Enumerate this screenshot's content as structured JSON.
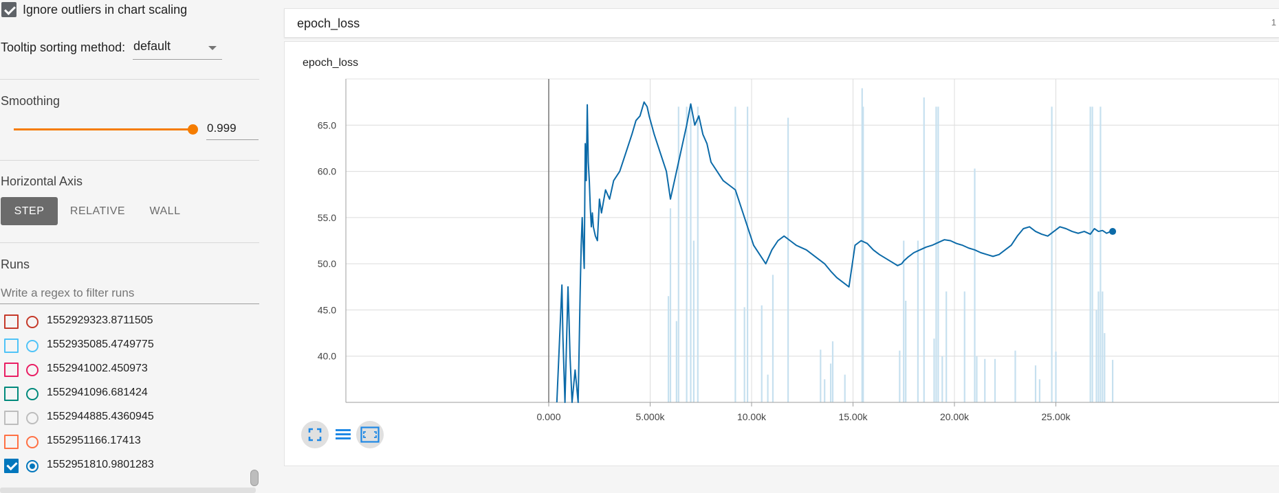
{
  "sidebar": {
    "ignore_outliers": {
      "label": "Ignore outliers in chart scaling",
      "checked": true
    },
    "tooltip": {
      "label": "Tooltip sorting method:",
      "value": "default"
    },
    "smoothing": {
      "title": "Smoothing",
      "value": "0.999",
      "fraction": 0.999
    },
    "horizontal_axis": {
      "title": "Horizontal Axis",
      "options": [
        "STEP",
        "RELATIVE",
        "WALL"
      ],
      "active": "STEP"
    },
    "runs": {
      "title": "Runs",
      "filter_placeholder": "Write a regex to filter runs",
      "items": [
        {
          "label": "1552929323.8711505",
          "color": "#c53929",
          "checked": false
        },
        {
          "label": "1552935085.4749775",
          "color": "#4fc3f7",
          "checked": false
        },
        {
          "label": "1552941002.450973",
          "color": "#e91e63",
          "checked": false
        },
        {
          "label": "1552941096.681424",
          "color": "#00897b",
          "checked": false
        },
        {
          "label": "1552944885.4360945",
          "color": "#bdbdbd",
          "checked": false
        },
        {
          "label": "1552951166.17413",
          "color": "#ff7043",
          "checked": false
        },
        {
          "label": "1552951810.9801283",
          "color": "#0277bd",
          "checked": true
        }
      ]
    }
  },
  "card": {
    "header_title": "epoch_loss",
    "header_count": "1",
    "chart_title": "epoch_loss"
  },
  "colors": {
    "accent_orange": "#f57c00",
    "series_dark": "#0b6aa8",
    "series_light": "#c6e0ef",
    "active_button": "#6b6b6b"
  },
  "toolbar": {
    "icons": [
      "fullscreen-icon",
      "list-icon",
      "fit-domain-icon"
    ]
  },
  "chart_data": {
    "type": "line",
    "title": "epoch_loss",
    "xlabel": "",
    "ylabel": "",
    "xlim": [
      -10000,
      36000
    ],
    "ylim": [
      35,
      70
    ],
    "x_ticks": [
      "0.000",
      "5.000k",
      "10.00k",
      "15.00k",
      "20.00k",
      "25.00k"
    ],
    "x_tick_values": [
      0,
      5000,
      10000,
      15000,
      20000,
      25000
    ],
    "y_ticks": [
      "40.0",
      "45.0",
      "50.0",
      "55.0",
      "60.0",
      "65.0"
    ],
    "y_tick_values": [
      40,
      45,
      50,
      55,
      60,
      65
    ],
    "grid": true,
    "series": [
      {
        "role": "smoothed",
        "x": [
          400,
          650,
          700,
          800,
          950,
          1000,
          1050,
          1150,
          1300,
          1450,
          1500,
          1550,
          1600,
          1650,
          1700,
          1750,
          1800,
          1850,
          1900,
          1950,
          2000,
          2050,
          2100,
          2150,
          2200,
          2300,
          2400,
          2500,
          2600,
          2800,
          3000,
          3200,
          3500,
          3800,
          4100,
          4300,
          4500,
          4700,
          4850,
          4950,
          5200,
          5500,
          5800,
          6000,
          6200,
          6400,
          6600,
          6800,
          7000,
          7200,
          7400,
          7600,
          7800,
          8000,
          8300,
          8600,
          8900,
          9200,
          9500,
          9800,
          10100,
          10400,
          10700,
          11000,
          11300,
          11600,
          11900,
          12200,
          12400,
          12700,
          13000,
          13300,
          13600,
          13900,
          14200,
          14500,
          14800,
          15100,
          15400,
          15700,
          16000,
          16300,
          16600,
          16900,
          17200,
          17400,
          17500,
          17700,
          18000,
          18300,
          18600,
          18900,
          19200,
          19500,
          19800,
          20100,
          20400,
          20700,
          21000,
          21300,
          21600,
          21900,
          22200,
          22500,
          22800,
          23100,
          23400,
          23700,
          24000,
          24300,
          24600,
          24900,
          25200,
          25500,
          25800,
          26100,
          26400,
          26700,
          26900,
          27100,
          27300,
          27500,
          27700,
          27800
        ],
        "values": [
          35,
          47.7,
          42,
          35,
          47.5,
          44,
          40,
          35,
          38.5,
          35,
          41,
          47,
          52,
          55,
          52,
          49.5,
          63,
          59,
          67.2,
          61,
          59,
          56,
          54,
          55.5,
          54,
          53,
          52.5,
          57,
          55.5,
          58,
          57,
          59,
          60,
          62,
          64,
          65.5,
          66,
          67.5,
          67,
          66,
          64,
          62,
          60,
          57,
          59,
          61,
          63,
          65,
          67.3,
          65,
          66,
          64,
          63,
          61,
          60,
          59,
          58.5,
          58,
          56,
          54,
          52,
          51,
          50,
          51.5,
          52.5,
          53,
          52.5,
          52,
          51.8,
          51.5,
          51,
          50.5,
          50,
          49.2,
          48.5,
          48,
          47.5,
          52,
          52.5,
          52.2,
          51.5,
          51,
          50.6,
          50.2,
          49.8,
          50,
          50.3,
          50.7,
          51.2,
          51.5,
          51.8,
          52.0,
          52.3,
          52.6,
          52.5,
          52.2,
          52.0,
          51.7,
          51.5,
          51.2,
          51.0,
          50.8,
          51.0,
          51.5,
          52,
          53,
          53.8,
          54,
          53.5,
          53.2,
          53,
          53.5,
          54,
          53.8,
          53.5,
          53.3,
          53.5,
          53.2,
          53.8,
          53.5,
          53.6,
          53.3,
          53.5,
          53.5
        ],
        "color": "#0b6aa8"
      }
    ]
  }
}
